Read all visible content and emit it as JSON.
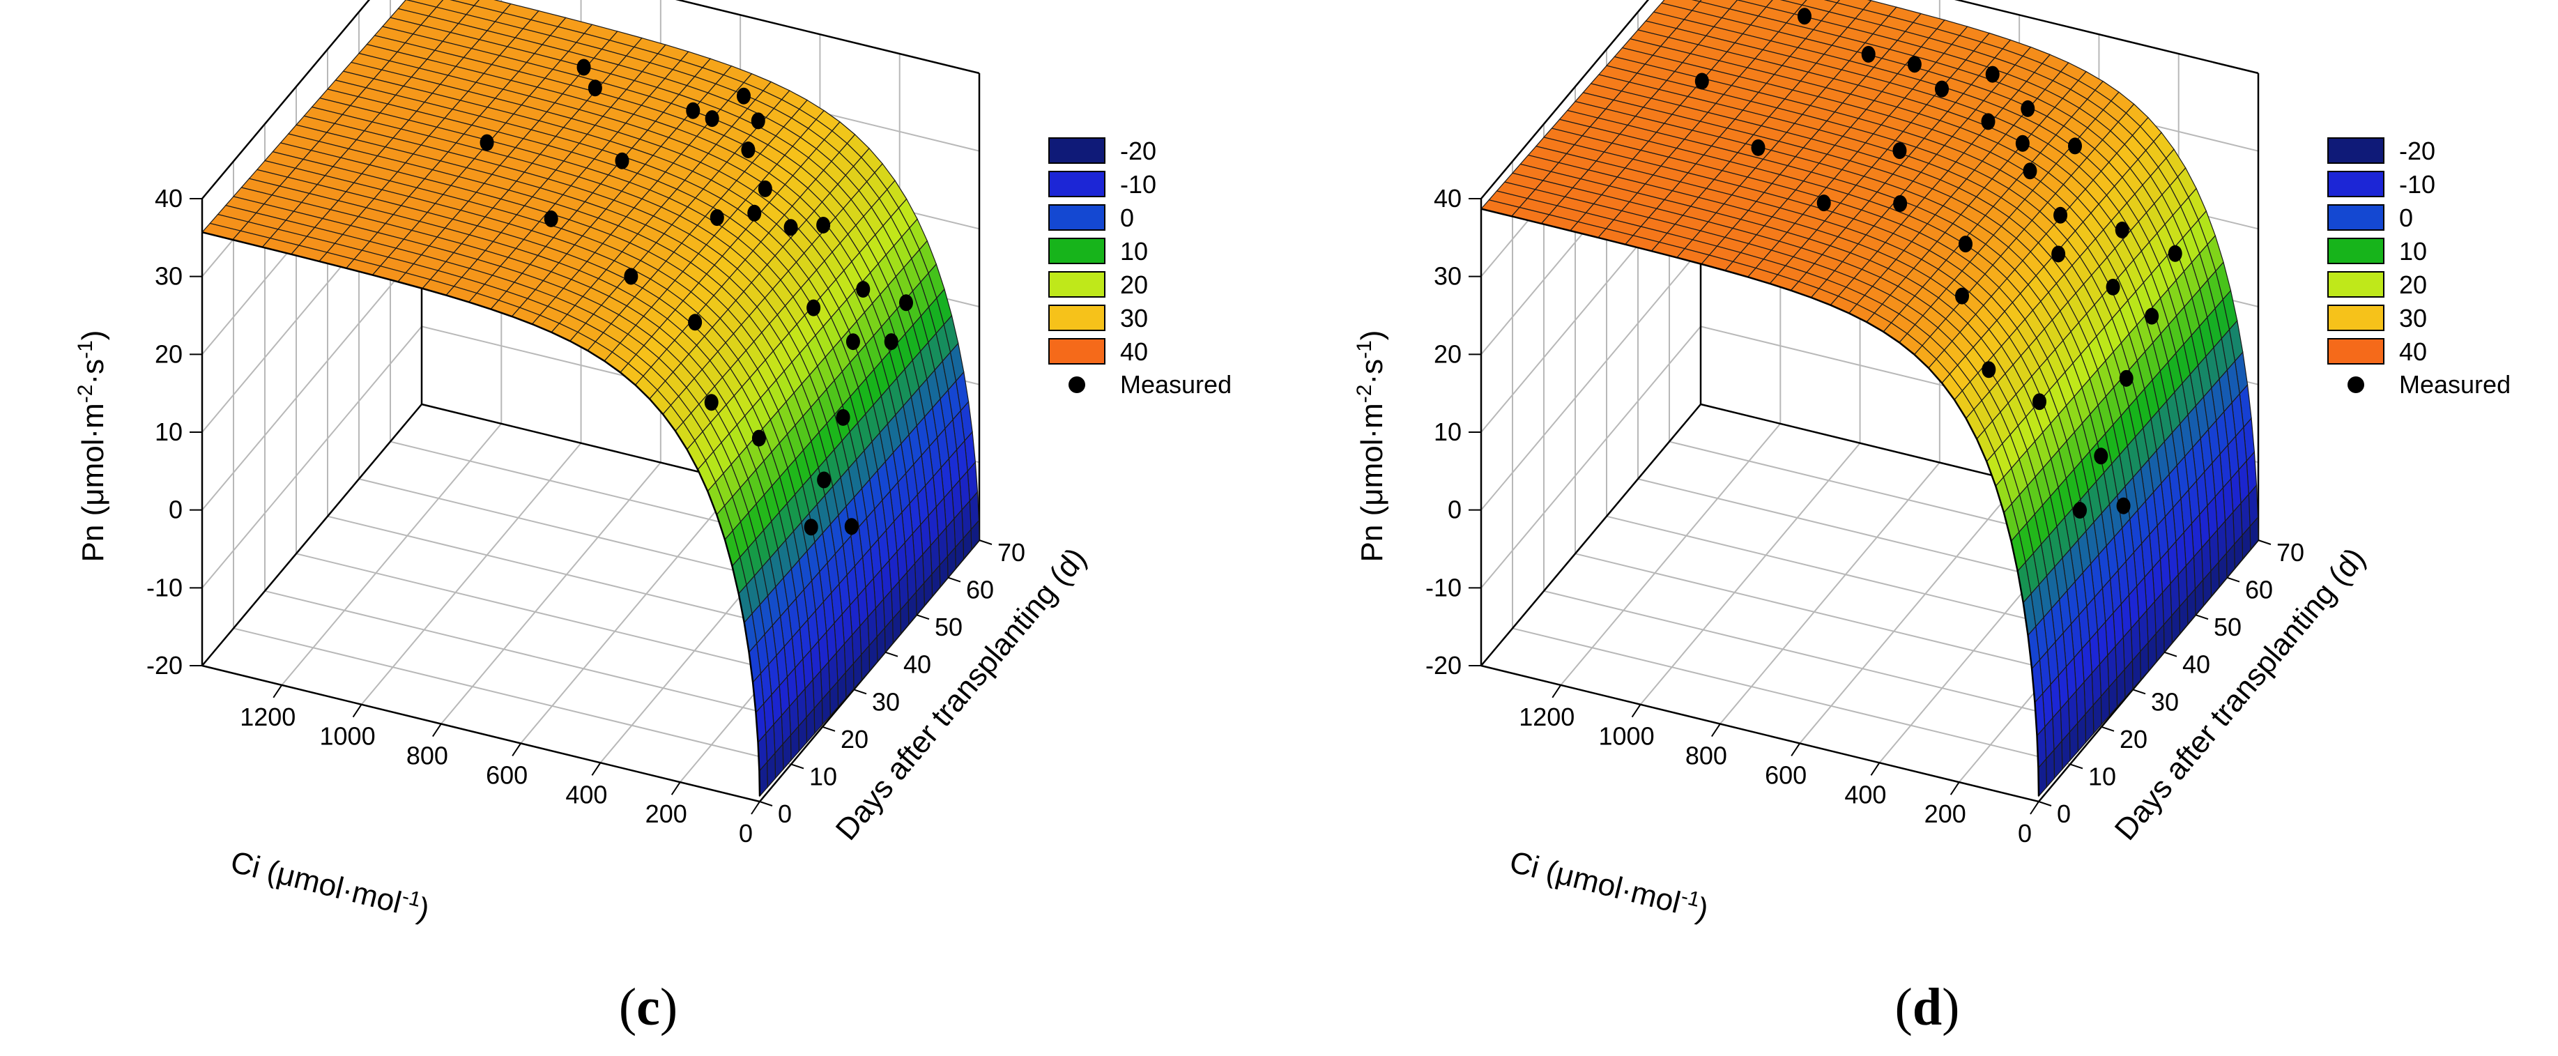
{
  "chart_data": [
    {
      "type": "surface3d",
      "panel_label": "(c)",
      "x_axis": {
        "label": "Ci (μmol·mol",
        "label_sup": "-1",
        "label_close": ")",
        "ticks": [
          0,
          200,
          400,
          600,
          800,
          1000,
          1200
        ],
        "range": [
          0,
          1400
        ]
      },
      "y_axis": {
        "label": "Days after transplanting (d)",
        "ticks": [
          0,
          10,
          20,
          30,
          40,
          50,
          60,
          70
        ],
        "range": [
          0,
          70
        ]
      },
      "z_axis": {
        "label_pre": "Pn (μmol·m",
        "sup1": "-2",
        "label_mid": "·s",
        "sup2": "-1",
        "label_close": ")",
        "ticks": [
          -20,
          -10,
          0,
          10,
          20,
          30,
          40
        ],
        "range": [
          -20,
          40
        ]
      },
      "model": {
        "pmax": 35,
        "a": 95,
        "c": 45,
        "days_coef": -0.02
      },
      "legend": {
        "levels": [
          {
            "label": "-20",
            "color": "#0f1a78"
          },
          {
            "label": "-10",
            "color": "#1c26d6"
          },
          {
            "label": "0",
            "color": "#1448d2"
          },
          {
            "label": "10",
            "color": "#17b41b"
          },
          {
            "label": "20",
            "color": "#bfe81a"
          },
          {
            "label": "30",
            "color": "#f6c21a"
          },
          {
            "label": "40",
            "color": "#f56a1a"
          }
        ],
        "marker_label": "Measured"
      },
      "measured": [
        {
          "ci": 930,
          "d": 62,
          "pn": 33
        },
        {
          "ci": 870,
          "d": 58,
          "pn": 33
        },
        {
          "ci": 640,
          "d": 60,
          "pn": 32
        },
        {
          "ci": 560,
          "d": 66,
          "pn": 32
        },
        {
          "ci": 600,
          "d": 61,
          "pn": 31
        },
        {
          "ci": 500,
          "d": 63,
          "pn": 31
        },
        {
          "ci": 470,
          "d": 56,
          "pn": 31
        },
        {
          "ci": 380,
          "d": 50,
          "pn": 30
        },
        {
          "ci": 360,
          "d": 44,
          "pn": 30
        },
        {
          "ci": 430,
          "d": 41,
          "pn": 30
        },
        {
          "ci": 760,
          "d": 30,
          "pn": 31
        },
        {
          "ci": 520,
          "d": 25,
          "pn": 29
        },
        {
          "ci": 300,
          "d": 48,
          "pn": 27
        },
        {
          "ci": 250,
          "d": 52,
          "pn": 26
        },
        {
          "ci": 180,
          "d": 40,
          "pn": 22
        },
        {
          "ci": 150,
          "d": 52,
          "pn": 19
        },
        {
          "ci": 120,
          "d": 45,
          "pn": 16
        },
        {
          "ci": 105,
          "d": 60,
          "pn": 14
        },
        {
          "ci": 95,
          "d": 54,
          "pn": 12
        },
        {
          "ci": 90,
          "d": 38,
          "pn": 10
        },
        {
          "ci": 75,
          "d": 30,
          "pn": 6
        },
        {
          "ci": 60,
          "d": 24,
          "pn": 3
        },
        {
          "ci": 45,
          "d": 35,
          "pn": -2
        },
        {
          "ci": 120,
          "d": 15,
          "pn": 18
        },
        {
          "ci": 200,
          "d": 10,
          "pn": 24
        },
        {
          "ci": 320,
          "d": 20,
          "pn": 28
        },
        {
          "ci": 700,
          "d": 45,
          "pn": 32
        },
        {
          "ci": 1000,
          "d": 40,
          "pn": 33
        }
      ]
    },
    {
      "type": "surface3d",
      "panel_label": "(d)",
      "x_axis": {
        "label": "Ci (μmol·mol",
        "label_sup": "-1",
        "label_close": ")",
        "ticks": [
          0,
          200,
          400,
          600,
          800,
          1000,
          1200
        ],
        "range": [
          0,
          1400
        ]
      },
      "y_axis": {
        "label": "Days after transplanting (d)",
        "ticks": [
          0,
          10,
          20,
          30,
          40,
          50,
          60,
          70
        ],
        "range": [
          0,
          70
        ]
      },
      "z_axis": {
        "label_pre": "Pn (μmol·m",
        "sup1": "-2",
        "label_mid": "·s",
        "sup2": "-1",
        "label_close": ")",
        "ticks": [
          -20,
          -10,
          0,
          10,
          20,
          30,
          40
        ],
        "range": [
          -20,
          40
        ]
      },
      "model": {
        "pmax": 38,
        "a": 90,
        "c": 40,
        "days_coef": -0.02
      },
      "legend": {
        "levels": [
          {
            "label": "-20",
            "color": "#0f1a78"
          },
          {
            "label": "-10",
            "color": "#1c26d6"
          },
          {
            "label": "0",
            "color": "#1448d2"
          },
          {
            "label": "10",
            "color": "#17b41b"
          },
          {
            "label": "20",
            "color": "#bfe81a"
          },
          {
            "label": "30",
            "color": "#f6c21a"
          },
          {
            "label": "40",
            "color": "#f56a1a"
          }
        ],
        "marker_label": "Measured"
      },
      "measured": [
        {
          "ci": 1100,
          "d": 65,
          "pn": 36
        },
        {
          "ci": 900,
          "d": 60,
          "pn": 36
        },
        {
          "ci": 800,
          "d": 62,
          "pn": 35
        },
        {
          "ci": 700,
          "d": 58,
          "pn": 35
        },
        {
          "ci": 620,
          "d": 64,
          "pn": 35
        },
        {
          "ci": 560,
          "d": 55,
          "pn": 34
        },
        {
          "ci": 500,
          "d": 60,
          "pn": 34
        },
        {
          "ci": 450,
          "d": 52,
          "pn": 34
        },
        {
          "ci": 400,
          "d": 48,
          "pn": 33
        },
        {
          "ci": 350,
          "d": 56,
          "pn": 33
        },
        {
          "ci": 980,
          "d": 35,
          "pn": 35
        },
        {
          "ci": 760,
          "d": 28,
          "pn": 34
        },
        {
          "ci": 600,
          "d": 32,
          "pn": 34
        },
        {
          "ci": 420,
          "d": 30,
          "pn": 32
        },
        {
          "ci": 300,
          "d": 45,
          "pn": 30
        },
        {
          "ci": 250,
          "d": 38,
          "pn": 29
        },
        {
          "ci": 200,
          "d": 52,
          "pn": 26
        },
        {
          "ci": 160,
          "d": 44,
          "pn": 23
        },
        {
          "ci": 130,
          "d": 60,
          "pn": 20
        },
        {
          "ci": 110,
          "d": 50,
          "pn": 17
        },
        {
          "ci": 95,
          "d": 40,
          "pn": 14
        },
        {
          "ci": 80,
          "d": 30,
          "pn": 9
        },
        {
          "ci": 70,
          "d": 22,
          "pn": 6
        },
        {
          "ci": 55,
          "d": 34,
          "pn": 1
        },
        {
          "ci": 140,
          "d": 18,
          "pn": 21
        },
        {
          "ci": 220,
          "d": 12,
          "pn": 27
        },
        {
          "ci": 350,
          "d": 20,
          "pn": 31
        },
        {
          "ci": 1200,
          "d": 45,
          "pn": 36
        },
        {
          "ci": 680,
          "d": 42,
          "pn": 35
        }
      ]
    }
  ]
}
